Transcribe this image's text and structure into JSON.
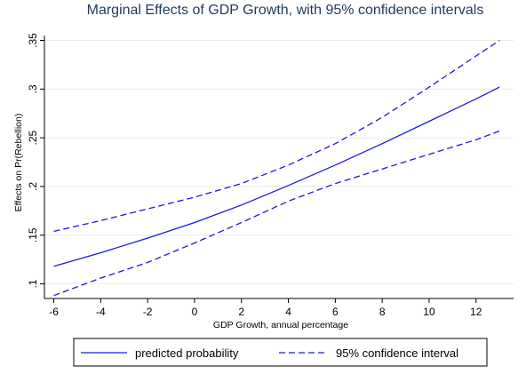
{
  "chart_data": {
    "type": "line",
    "title": "Marginal Effects of GDP Growth, with 95% confidence intervals",
    "xlabel": "GDP Growth, annual percentage",
    "ylabel": "Effects on Pr(Rebellion)",
    "xlim": [
      -6.4,
      13.6
    ],
    "ylim": [
      0.085,
      0.355
    ],
    "xticks": [
      -6,
      -4,
      -2,
      0,
      2,
      4,
      6,
      8,
      10,
      12
    ],
    "xtick_labels": [
      "-6",
      "-4",
      "-2",
      "0",
      "2",
      "4",
      "6",
      "8",
      "10",
      "12"
    ],
    "yticks": [
      0.1,
      0.15,
      0.2,
      0.25,
      0.3,
      0.35
    ],
    "ytick_labels": [
      ".1",
      ".15",
      ".2",
      ".25",
      ".3",
      ".35"
    ],
    "grid": "horizontal",
    "legend_position": "bottom",
    "series": [
      {
        "name": "predicted probability",
        "style": "solid",
        "color": "#1a1ad6",
        "x": [
          -6,
          -4,
          -2,
          0,
          2,
          4,
          6,
          8,
          10,
          12,
          13
        ],
        "y": [
          0.118,
          0.132,
          0.147,
          0.163,
          0.181,
          0.201,
          0.222,
          0.244,
          0.267,
          0.29,
          0.302
        ]
      },
      {
        "name": "95% confidence interval",
        "style": "dashed",
        "color": "#1a1ad6",
        "x": [
          -6,
          -4,
          -2,
          0,
          2,
          4,
          6,
          8,
          10,
          12,
          13
        ],
        "y": [
          0.154,
          0.165,
          0.177,
          0.189,
          0.203,
          0.222,
          0.244,
          0.271,
          0.302,
          0.334,
          0.35
        ]
      },
      {
        "name": "",
        "style": "dashed",
        "color": "#1a1ad6",
        "x": [
          -6,
          -4,
          -2,
          0,
          2,
          4,
          6,
          8,
          10,
          12,
          13
        ],
        "y": [
          0.088,
          0.106,
          0.122,
          0.142,
          0.163,
          0.185,
          0.203,
          0.218,
          0.233,
          0.248,
          0.257
        ]
      }
    ]
  },
  "legend": {
    "items": [
      {
        "label": "predicted probability",
        "style": "solid"
      },
      {
        "label": "95% confidence interval",
        "style": "dashed"
      }
    ]
  }
}
